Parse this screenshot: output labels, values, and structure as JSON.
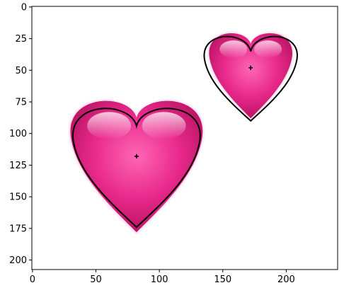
{
  "chart_data": {
    "type": "image",
    "title": "",
    "xlabel": "",
    "ylabel": "",
    "xlim": [
      -0.5,
      240.5
    ],
    "ylim": [
      207.5,
      -0.5
    ],
    "y_axis_inverted": true,
    "grid": false,
    "x_ticks": [
      0,
      50,
      100,
      150,
      200
    ],
    "y_ticks": [
      0,
      25,
      50,
      75,
      100,
      125,
      150,
      175,
      200
    ],
    "objects": [
      {
        "name": "heart-large",
        "center": [
          82,
          118
        ],
        "fill_bbox": [
          28,
          70,
          136,
          178
        ],
        "outline_bbox": [
          30,
          76,
          134,
          174
        ],
        "outline_notch": [
          82,
          94
        ],
        "outline_tip": [
          82,
          174
        ]
      },
      {
        "name": "heart-small",
        "center": [
          172,
          48
        ],
        "fill_bbox": [
          138,
          18,
          206,
          88
        ],
        "outline_bbox": [
          134,
          20,
          210,
          90
        ],
        "outline_notch": [
          172,
          35
        ],
        "outline_tip": [
          172,
          90
        ]
      }
    ],
    "colors": {
      "heart_base": "#e8298b",
      "heart_dark": "#b5125f",
      "heart_light": "#ff9fd0",
      "outline": "#000000",
      "axes": "#000000"
    }
  }
}
